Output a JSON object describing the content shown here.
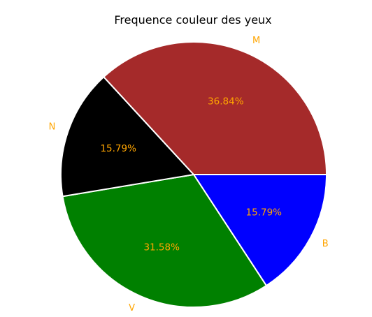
{
  "chart_data": {
    "type": "pie",
    "title": "Frequence couleur des yeux",
    "slices": [
      {
        "label": "B",
        "value": 15.79,
        "pct_label": "15.79%",
        "color": "#0000ff"
      },
      {
        "label": "V",
        "value": 31.58,
        "pct_label": "31.58%",
        "color": "#008000"
      },
      {
        "label": "N",
        "value": 15.79,
        "pct_label": "15.79%",
        "color": "#000000"
      },
      {
        "label": "M",
        "value": 36.84,
        "pct_label": "36.84%",
        "color": "#a52a2a"
      }
    ],
    "start_angle_deg": 0,
    "direction": "clockwise",
    "edge_color": "#ffffff",
    "label_color": "#ffa500",
    "legend": "none"
  }
}
